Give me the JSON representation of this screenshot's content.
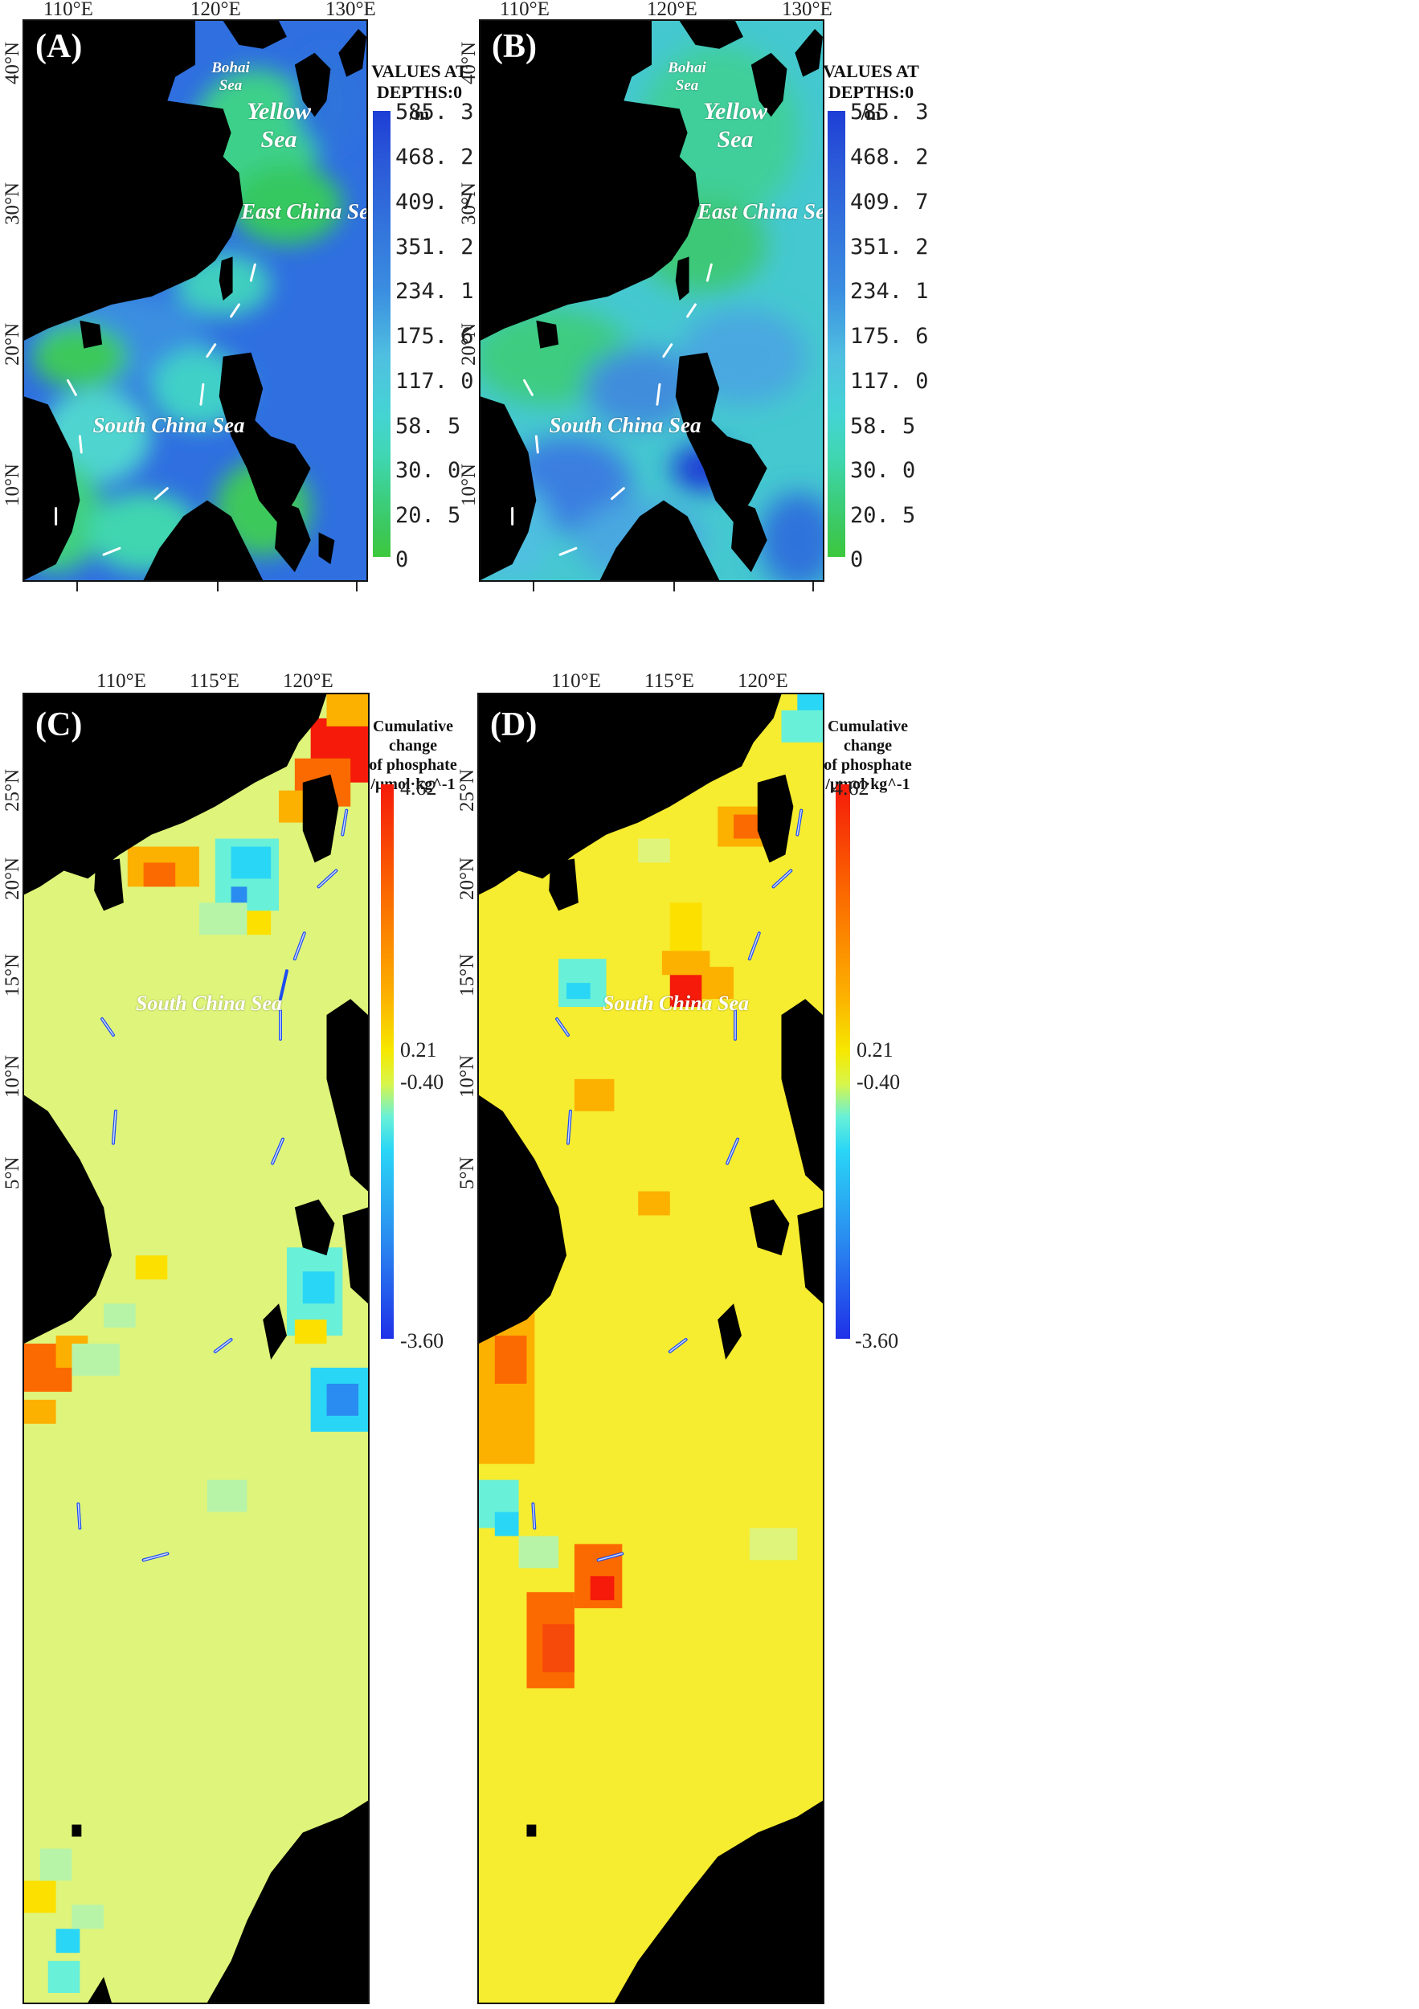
{
  "top_panels": {
    "lon_ticks": [
      "110°E",
      "120°E",
      "130°E"
    ],
    "lat_ticks": [
      "40°N",
      "30°N",
      "20°N",
      "10°N"
    ],
    "sea_labels": {
      "bohai": "Bohai\nSea",
      "yellow": "Yellow\nSea",
      "east_china": "East China Sea",
      "south_china": "South China Sea"
    },
    "legend": {
      "title": "VALUES AT\nDEPTHS:0\n/m",
      "values": [
        "585. 3",
        "468. 2",
        "409. 7",
        "351. 2",
        "234. 1",
        "175. 6",
        "117. 0",
        "58. 5",
        "30. 0",
        "20. 5",
        "0"
      ],
      "color_stops": [
        "#1e3ed6",
        "#2b5ad8",
        "#2f73db",
        "#3a8de0",
        "#45a6e0",
        "#4fbfe0",
        "#45d4d4",
        "#3fd6b0",
        "#3ccf84",
        "#3cc85c",
        "#3cc83c"
      ]
    }
  },
  "bottom_panels": {
    "lon_ticks": [
      "110°E",
      "115°E",
      "120°E"
    ],
    "lat_ticks": [
      "25°N",
      "20°N",
      "15°N",
      "10°N",
      "5°N"
    ],
    "sea_label": "South China Sea",
    "legend": {
      "title": "Cumulative\nchange\nof phosphate\n/μmol·kg^-1",
      "values": [
        "4.62",
        "0.21",
        "-0.40",
        "-3.60"
      ],
      "color_stops": [
        "#f51a0a",
        "#fb6a00",
        "#fcb000",
        "#f6e800",
        "#d8f64a",
        "#68f0d8",
        "#2ad6f6",
        "#2a8cf0",
        "#1f30e8"
      ]
    }
  },
  "panels": [
    {
      "label": "(A)"
    },
    {
      "label": "(B)"
    },
    {
      "label": "(C)"
    },
    {
      "label": "(D)"
    }
  ]
}
